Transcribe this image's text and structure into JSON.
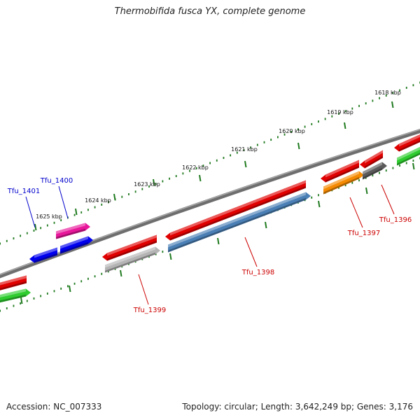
{
  "title": "Thermobifida fusca YX, complete genome",
  "footer": {
    "accession": "Accession: NC_007333",
    "summary": "Topology: circular; Length: 3,642,249 bp; Genes: 3,176"
  },
  "colors": {
    "backbone": "#7a7a7a",
    "tick": "#1f7a1f",
    "tick_label": "#111111",
    "label_red": "#cc0000",
    "label_blue": "#0000cc",
    "red": "#e00000",
    "green": "#2ecc2e",
    "blue": "#0000ee",
    "magenta": "#e8169a",
    "gray": "#b4b4b4",
    "steelblue": "#4a7fb5",
    "orange": "#f58a00",
    "darkgray": "#5a5a5a"
  },
  "ticks": [
    {
      "label": "1625 kbp"
    },
    {
      "label": "1624 kbp"
    },
    {
      "label": "1623 kbp"
    },
    {
      "label": "1622 kbp"
    },
    {
      "label": "1621 kbp"
    },
    {
      "label": "1620 kbp"
    },
    {
      "label": "1619 kbp"
    },
    {
      "label": "1618 kbp"
    }
  ],
  "genes": [
    {
      "label": "Tfu_1401",
      "label_color": "blue"
    },
    {
      "label": "Tfu_1400",
      "label_color": "blue"
    },
    {
      "label": "Tfu_1399",
      "label_color": "red"
    },
    {
      "label": "Tfu_1398",
      "label_color": "red"
    },
    {
      "label": "Tfu_1397",
      "label_color": "red"
    },
    {
      "label": "Tfu_1396",
      "label_color": "red"
    }
  ]
}
